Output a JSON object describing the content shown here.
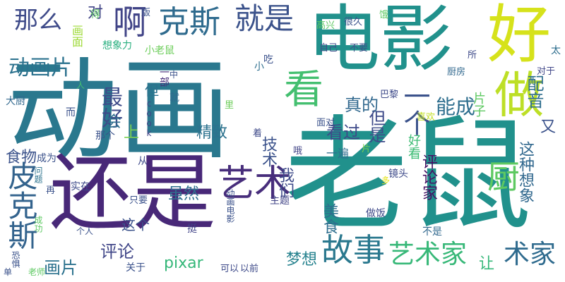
{
  "words": [
    {
      "text": "动画",
      "color": "#2a788e"
    },
    {
      "text": "老鼠",
      "color": "#21918c"
    },
    {
      "text": "还是",
      "color": "#482878"
    },
    {
      "text": "电影",
      "color": "#21918c"
    },
    {
      "text": "好",
      "color": "#d6e21b"
    },
    {
      "text": "做",
      "color": "#bddf26"
    },
    {
      "text": "看",
      "color": "#44bf70"
    },
    {
      "text": "就是",
      "color": "#3b528b"
    },
    {
      "text": "克斯",
      "color": "#2f6b8e"
    },
    {
      "text": "啊",
      "color": "#414487"
    },
    {
      "text": "那么",
      "color": "#3e4a89"
    },
    {
      "text": "动画片",
      "color": "#2c728e"
    },
    {
      "text": "皮克斯",
      "color": "#33638d"
    },
    {
      "text": "艺术",
      "color": "#472d7b"
    },
    {
      "text": "故事",
      "color": "#2a788e"
    },
    {
      "text": "艺术家",
      "color": "#37b878"
    },
    {
      "text": "术家",
      "color": "#2f6b8e"
    },
    {
      "text": "一个",
      "color": "#3b528b"
    },
    {
      "text": "能成",
      "color": "#2e6e8e"
    },
    {
      "text": "厨",
      "color": "#5ec962"
    },
    {
      "text": "最好",
      "color": "#3e4a89"
    },
    {
      "text": "真的",
      "color": "#31688e"
    },
    {
      "text": "但是",
      "color": "#3e4a89"
    },
    {
      "text": "看过",
      "color": "#3e4989"
    },
    {
      "text": "精致",
      "color": "#2c728e"
    },
    {
      "text": "上",
      "color": "#7ad151"
    },
    {
      "text": "会",
      "color": "#2e6e8e"
    },
    {
      "text": "食物",
      "color": "#3b528b"
    },
    {
      "text": "技术",
      "color": "#3b528b"
    },
    {
      "text": "我们",
      "color": "#3e4a89"
    },
    {
      "text": "配音",
      "color": "#2e6e8e"
    },
    {
      "text": "又",
      "color": "#3b528b"
    },
    {
      "text": "这种想象",
      "color": "#31688e"
    },
    {
      "text": "评论家",
      "color": "#471164"
    },
    {
      "text": "片子",
      "color": "#5ec962"
    },
    {
      "text": "好看",
      "color": "#3dbc74"
    },
    {
      "text": "美食",
      "color": "#2e6e8e"
    },
    {
      "text": "虽然",
      "color": "#2e6e8e"
    },
    {
      "text": "评论",
      "color": "#404688"
    },
    {
      "text": "画片",
      "color": "#2c728e"
    },
    {
      "text": "pixar",
      "color": "#35b779"
    },
    {
      "text": "梦想",
      "color": "#26828e"
    },
    {
      "text": "让",
      "color": "#35b779"
    },
    {
      "text": "这个",
      "color": "#3b528b"
    },
    {
      "text": "对",
      "color": "#414487"
    },
    {
      "text": "画面",
      "color": "#9fda3a"
    },
    {
      "text": "想象力",
      "color": "#29af7f"
    },
    {
      "text": "小老鼠",
      "color": "#6ccd5a"
    },
    {
      "text": "很久",
      "color": "#3b528b"
    },
    {
      "text": "高兴",
      "color": "#5ec962"
    },
    {
      "text": "饿",
      "color": "#5ec962"
    },
    {
      "text": "不要",
      "color": "#3b528b"
    },
    {
      "text": "自己",
      "color": "#3e4989"
    },
    {
      "text": "太",
      "color": "#2e6e8e"
    },
    {
      "text": "对于",
      "color": "#404688"
    },
    {
      "text": "厨房",
      "color": "#31688e"
    },
    {
      "text": "巴黎",
      "color": "#3e4a89"
    },
    {
      "text": "喜欢",
      "color": "#c2df23"
    },
    {
      "text": "里",
      "color": "#6ccd5a"
    },
    {
      "text": "吃",
      "color": "#3b528b"
    },
    {
      "text": "小",
      "color": "#2e6e8e"
    },
    {
      "text": "中",
      "color": "#3b528b"
    },
    {
      "text": "人",
      "color": "#44bf70"
    },
    {
      "text": "就",
      "color": "#31688e"
    },
    {
      "text": "一部",
      "color": "#472d7b"
    },
    {
      "text": "但",
      "color": "#2c728e"
    },
    {
      "text": "cook",
      "color": "#414487"
    },
    {
      "text": "而",
      "color": "#3b528b"
    },
    {
      "text": "那个",
      "color": "#3b528b"
    },
    {
      "text": "大厨",
      "color": "#31688e"
    },
    {
      "text": "得",
      "color": "#5ec962"
    },
    {
      "text": "版",
      "color": "#3b528b"
    },
    {
      "text": "着",
      "color": "#3e4a89"
    },
    {
      "text": "面对",
      "color": "#3b528b"
    },
    {
      "text": "哦",
      "color": "#414487"
    },
    {
      "text": "一遍",
      "color": "#2e6e8e"
    },
    {
      "text": "片",
      "color": "#7ad151"
    },
    {
      "text": "成为",
      "color": "#3b528b"
    },
    {
      "text": "从",
      "color": "#3e4989"
    },
    {
      "text": "问题",
      "color": "#2c728e"
    },
    {
      "text": "再",
      "color": "#3b528b"
    },
    {
      "text": "实在",
      "color": "#3e4a89"
    },
    {
      "text": "只要",
      "color": "#3b528b"
    },
    {
      "text": "动画电影",
      "color": "#3b528b"
    },
    {
      "text": "主题",
      "color": "#414487"
    },
    {
      "text": "镜头",
      "color": "#3e4a89"
    },
    {
      "text": "多",
      "color": "#e5e419"
    },
    {
      "text": "做饭",
      "color": "#3e4989"
    },
    {
      "text": "成功",
      "color": "#5ec962"
    },
    {
      "text": "个人",
      "color": "#3b528b"
    },
    {
      "text": "挺",
      "color": "#414487"
    },
    {
      "text": "不是",
      "color": "#31688e"
    },
    {
      "text": "恐惧",
      "color": "#3b528b"
    },
    {
      "text": "老师",
      "color": "#5ec962"
    },
    {
      "text": "关于",
      "color": "#3b528b"
    },
    {
      "text": "可以",
      "color": "#3e4a89"
    },
    {
      "text": "以前",
      "color": "#3e4a89"
    },
    {
      "text": "单",
      "color": "#3b528b"
    },
    {
      "text": "所",
      "color": "#3e4a89"
    }
  ]
}
